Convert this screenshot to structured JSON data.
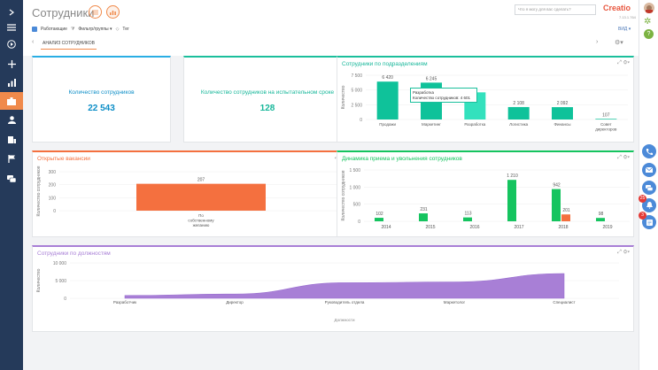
{
  "colors": {
    "nav_bg": "#253a5a",
    "accent_orange": "#f08a4b",
    "teal": "#0fc29a",
    "green": "#15c45f",
    "orange": "#f4703f",
    "purple": "#a87fd6",
    "blue_text": "#0d8ec7",
    "teal_text": "#17b79a"
  },
  "header": {
    "title": "Сотрудники",
    "search_placeholder": "Что я могу для вас сделать?",
    "logo": "Creatio",
    "version": "7.13.1.764",
    "view_label": "ВИД ▾"
  },
  "filters": {
    "active": "Работающие",
    "groups": "Фильтр/группы ▾",
    "tag": "Тег"
  },
  "tabs": {
    "active": "АНАЛИЗ СОТРУДНИКОВ"
  },
  "kpi1": {
    "label": "Количество сотрудников",
    "value": "22 543"
  },
  "kpi2": {
    "label": "Количество сотрудников на испытательном сроке",
    "value": "128"
  },
  "chart_dept": {
    "title": "Сотрудники по подразделениям",
    "tooltip_title": "Разработка",
    "tooltip_label": "Количество сотрудников: 4 601"
  },
  "chart_vac": {
    "title": "Открытые вакансии"
  },
  "chart_dyn": {
    "title": "Динамика приема и увольнения сотрудников"
  },
  "chart_pos": {
    "title": "Сотрудники по должностям"
  },
  "chart_data": [
    {
      "type": "bar",
      "title": "Сотрудники по подразделениям",
      "ylabel": "Количество",
      "ylim": [
        0,
        7500
      ],
      "yticks": [
        "0",
        "2 500",
        "5 000",
        "7 500"
      ],
      "categories": [
        "Продажи",
        "Маркетинг",
        "Разработка",
        "Логистика",
        "Финансы",
        "Совет директоров"
      ],
      "values": [
        6420,
        6245,
        4601,
        2108,
        2092,
        107
      ],
      "labels": [
        "6 420",
        "6 245",
        "",
        "2 108",
        "2 092",
        "107"
      ]
    },
    {
      "type": "bar",
      "title": "Открытые вакансии",
      "ylabel": "Количество сотрудников",
      "ylim": [
        0,
        300
      ],
      "yticks": [
        "0",
        "100",
        "200",
        "300"
      ],
      "categories": [
        "По собственному желанию"
      ],
      "values": [
        207
      ],
      "labels": [
        "207"
      ]
    },
    {
      "type": "bar",
      "title": "Динамика приема и увольнения сотрудников",
      "ylabel": "Количество сотрудников",
      "ylim": [
        0,
        1500
      ],
      "yticks": [
        "0",
        "500",
        "1 000",
        "1 500"
      ],
      "categories": [
        "2014",
        "2015",
        "2016",
        "2017",
        "2018",
        "2019"
      ],
      "series": [
        {
          "values": [
            102,
            231,
            113,
            1210,
            942,
            98
          ],
          "labels": [
            "102",
            "231",
            "113",
            "1 210",
            "942",
            "98"
          ]
        },
        {
          "values": [
            0,
            0,
            0,
            0,
            201,
            0
          ],
          "labels": [
            "",
            "",
            "",
            "",
            "201",
            ""
          ]
        }
      ]
    },
    {
      "type": "area",
      "title": "Сотрудники по должностям",
      "ylabel": "Количество",
      "xlabel": "Должности",
      "ylim": [
        0,
        10000
      ],
      "yticks": [
        "0",
        "5 000",
        "10 000"
      ],
      "categories": [
        "Разработчик",
        "Директор",
        "Руководитель отдела",
        "Маркетолог",
        "Специалист"
      ],
      "values": [
        800,
        1200,
        4400,
        4600,
        7000
      ]
    }
  ]
}
